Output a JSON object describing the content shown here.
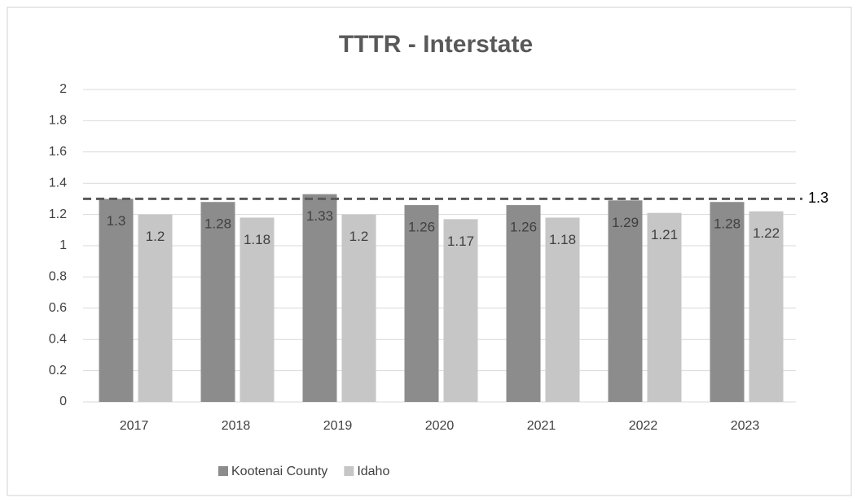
{
  "chart_data": {
    "type": "bar",
    "title": "TTTR - Interstate",
    "categories": [
      "2017",
      "2018",
      "2019",
      "2020",
      "2021",
      "2022",
      "2023"
    ],
    "series": [
      {
        "name": "Kootenai County",
        "color": "#8c8c8c",
        "values": [
          1.3,
          1.28,
          1.33,
          1.26,
          1.26,
          1.29,
          1.28
        ]
      },
      {
        "name": "Idaho",
        "color": "#c6c6c6",
        "values": [
          1.2,
          1.18,
          1.2,
          1.17,
          1.18,
          1.21,
          1.22
        ]
      }
    ],
    "ylim": [
      0,
      2
    ],
    "yticks": [
      0,
      0.2,
      0.4,
      0.6,
      0.8,
      1,
      1.2,
      1.4,
      1.6,
      1.8,
      2
    ],
    "grid": true,
    "legend": "bottom-left",
    "reference_line": {
      "value": 1.3,
      "style": "dashed",
      "color": "#595959"
    }
  }
}
